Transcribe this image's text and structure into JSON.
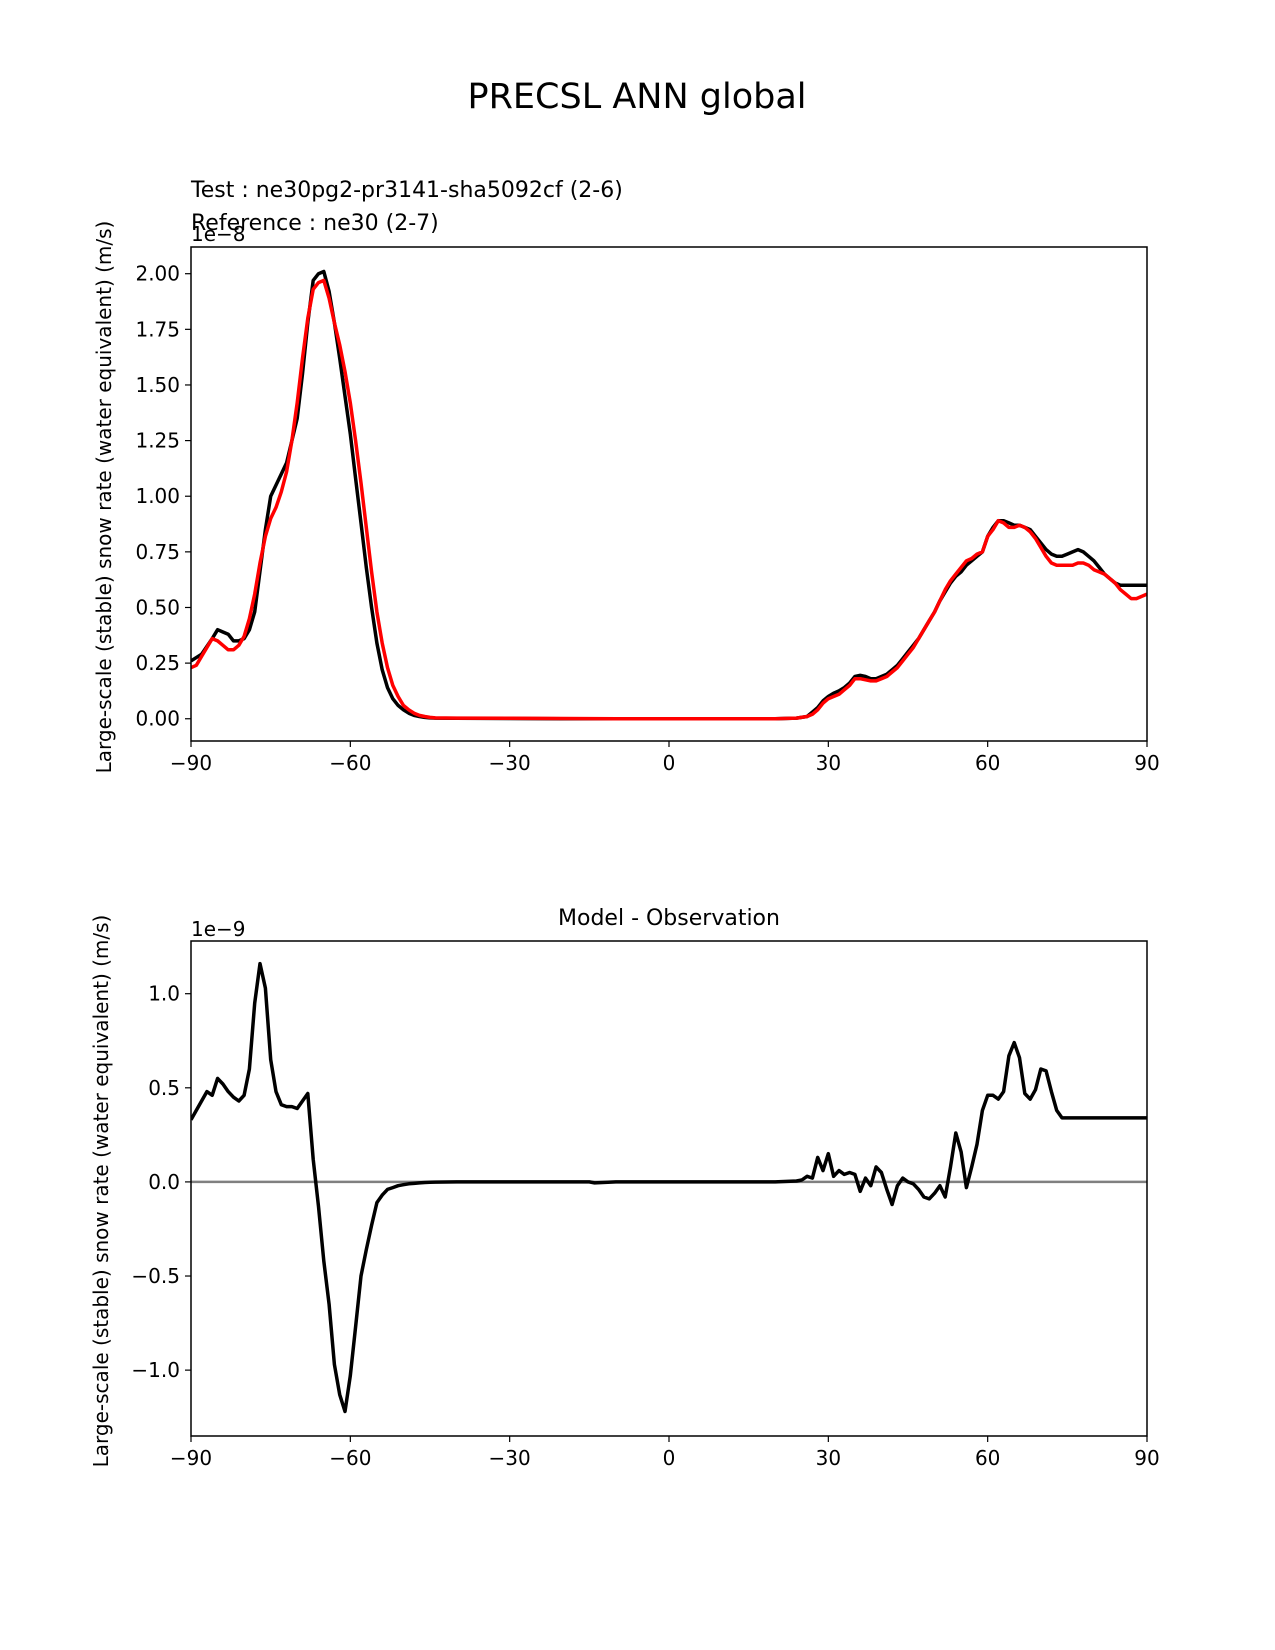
{
  "figure": {
    "suptitle": "PRECSL ANN global"
  },
  "colors": {
    "test": "#000000",
    "reference": "#ff0000",
    "zero_line": "#808080"
  },
  "chart_data": [
    {
      "type": "line",
      "test_label": "Test : ne30pg2-pr3141-sha5092cf (2-6)",
      "reference_label": "Reference : ne30 (2-7)",
      "ylabel": "Large-scale (stable) snow rate (water equivalent) (m/s)",
      "offset_text": "1e−8",
      "xlim": [
        -90,
        90
      ],
      "ylim": [
        -0.1,
        2.12
      ],
      "xticks": [
        -90,
        -60,
        -30,
        0,
        30,
        60,
        90
      ],
      "xtick_labels": [
        "−90",
        "−60",
        "−30",
        "0",
        "30",
        "60",
        "90"
      ],
      "yticks": [
        0.0,
        0.25,
        0.5,
        0.75,
        1.0,
        1.25,
        1.5,
        1.75,
        2.0
      ],
      "ytick_labels": [
        "0.00",
        "0.25",
        "0.50",
        "0.75",
        "1.00",
        "1.25",
        "1.50",
        "1.75",
        "2.00"
      ],
      "grid": false,
      "series": [
        {
          "color": "#000000",
          "x": [
            -90,
            -88,
            -86,
            -85,
            -84,
            -83,
            -82,
            -81,
            -80,
            -79,
            -78,
            -76,
            -75,
            -74,
            -73,
            -72,
            -71,
            -70,
            -69,
            -68,
            -67,
            -66,
            -65,
            -64,
            -63,
            -62,
            -61,
            -60,
            -59,
            -58,
            -57,
            -56,
            -55,
            -54,
            -53,
            -52,
            -51,
            -50,
            -49,
            -48,
            -47,
            -46,
            -45,
            -44,
            -40,
            -30,
            -20,
            -10,
            0,
            10,
            20,
            24,
            26,
            27,
            28,
            29,
            30,
            31,
            32,
            33,
            34,
            35,
            36,
            37,
            38,
            39,
            40,
            41,
            42,
            43,
            44,
            45,
            46,
            47,
            48,
            49,
            50,
            51,
            52,
            53,
            54,
            55,
            56,
            57,
            58,
            59,
            60,
            61,
            62,
            63,
            64,
            65,
            66,
            67,
            68,
            69,
            70,
            71,
            72,
            73,
            74,
            75,
            76,
            77,
            78,
            79,
            80,
            81,
            82,
            83,
            84,
            85,
            86,
            88,
            90
          ],
          "values": [
            0.26,
            0.29,
            0.36,
            0.4,
            0.39,
            0.38,
            0.35,
            0.35,
            0.36,
            0.4,
            0.48,
            0.85,
            1.0,
            1.05,
            1.1,
            1.15,
            1.25,
            1.35,
            1.55,
            1.78,
            1.97,
            2.0,
            2.01,
            1.92,
            1.78,
            1.62,
            1.45,
            1.28,
            1.08,
            0.88,
            0.68,
            0.5,
            0.34,
            0.22,
            0.14,
            0.09,
            0.06,
            0.04,
            0.025,
            0.015,
            0.01,
            0.006,
            0.004,
            0.003,
            0.002,
            0.001,
            0.0,
            0.0,
            0.0,
            0.0,
            0.0,
            0.003,
            0.01,
            0.03,
            0.05,
            0.08,
            0.1,
            0.115,
            0.125,
            0.14,
            0.16,
            0.19,
            0.195,
            0.19,
            0.18,
            0.18,
            0.19,
            0.2,
            0.22,
            0.24,
            0.27,
            0.3,
            0.33,
            0.36,
            0.4,
            0.44,
            0.48,
            0.53,
            0.57,
            0.61,
            0.64,
            0.66,
            0.69,
            0.71,
            0.73,
            0.75,
            0.82,
            0.86,
            0.89,
            0.89,
            0.88,
            0.87,
            0.87,
            0.86,
            0.85,
            0.82,
            0.79,
            0.76,
            0.74,
            0.73,
            0.73,
            0.74,
            0.75,
            0.76,
            0.75,
            0.73,
            0.71,
            0.68,
            0.65,
            0.63,
            0.61,
            0.6,
            0.6,
            0.6,
            0.6
          ]
        },
        {
          "color": "#ff0000",
          "x": [
            -90,
            -89,
            -88,
            -87,
            -86,
            -85,
            -84,
            -83,
            -82,
            -81,
            -80,
            -79,
            -78,
            -77,
            -76,
            -75,
            -74,
            -73,
            -72,
            -71,
            -70,
            -69,
            -68,
            -67,
            -66,
            -65,
            -64,
            -63,
            -62,
            -61,
            -60,
            -59,
            -58,
            -57,
            -56,
            -55,
            -54,
            -53,
            -52,
            -51,
            -50,
            -49,
            -48,
            -47,
            -46,
            -45,
            -44,
            -40,
            -30,
            -20,
            -10,
            0,
            10,
            20,
            24,
            26,
            27,
            28,
            29,
            30,
            31,
            32,
            33,
            34,
            35,
            36,
            37,
            38,
            39,
            40,
            41,
            42,
            43,
            44,
            45,
            46,
            47,
            48,
            49,
            50,
            51,
            52,
            53,
            54,
            55,
            56,
            57,
            58,
            59,
            60,
            61,
            62,
            63,
            64,
            65,
            66,
            67,
            68,
            69,
            70,
            71,
            72,
            73,
            74,
            75,
            76,
            77,
            78,
            79,
            80,
            81,
            82,
            83,
            84,
            85,
            86,
            87,
            88,
            89,
            90
          ],
          "values": [
            0.23,
            0.24,
            0.28,
            0.32,
            0.36,
            0.35,
            0.33,
            0.31,
            0.31,
            0.33,
            0.37,
            0.45,
            0.56,
            0.7,
            0.82,
            0.9,
            0.95,
            1.02,
            1.11,
            1.25,
            1.42,
            1.62,
            1.8,
            1.93,
            1.96,
            1.97,
            1.89,
            1.78,
            1.68,
            1.56,
            1.42,
            1.25,
            1.06,
            0.86,
            0.66,
            0.48,
            0.34,
            0.23,
            0.15,
            0.1,
            0.06,
            0.04,
            0.025,
            0.015,
            0.01,
            0.006,
            0.004,
            0.003,
            0.002,
            0.001,
            0.0,
            0.0,
            0.0,
            0.0,
            0.003,
            0.01,
            0.02,
            0.04,
            0.07,
            0.09,
            0.1,
            0.11,
            0.13,
            0.15,
            0.18,
            0.18,
            0.175,
            0.17,
            0.17,
            0.18,
            0.19,
            0.21,
            0.23,
            0.26,
            0.29,
            0.32,
            0.36,
            0.4,
            0.44,
            0.48,
            0.53,
            0.58,
            0.62,
            0.65,
            0.68,
            0.71,
            0.72,
            0.74,
            0.75,
            0.82,
            0.85,
            0.89,
            0.88,
            0.86,
            0.86,
            0.87,
            0.86,
            0.84,
            0.81,
            0.77,
            0.73,
            0.7,
            0.69,
            0.69,
            0.69,
            0.69,
            0.7,
            0.7,
            0.69,
            0.67,
            0.66,
            0.65,
            0.63,
            0.61,
            0.58,
            0.56,
            0.54,
            0.54,
            0.55,
            0.56
          ]
        }
      ]
    },
    {
      "type": "line",
      "title": "Model - Observation",
      "ylabel": "Large-scale (stable) snow rate (water equivalent) (m/s)",
      "offset_text": "1e−9",
      "xlim": [
        -90,
        90
      ],
      "ylim": [
        -1.35,
        1.28
      ],
      "xticks": [
        -90,
        -60,
        -30,
        0,
        30,
        60,
        90
      ],
      "xtick_labels": [
        "−90",
        "−60",
        "−30",
        "0",
        "30",
        "60",
        "90"
      ],
      "yticks": [
        -1.0,
        -0.5,
        0.0,
        0.5,
        1.0
      ],
      "ytick_labels": [
        "−1.0",
        "−0.5",
        "0.0",
        "0.5",
        "1.0"
      ],
      "grid": false,
      "zero_line": 0.0,
      "series": [
        {
          "color": "#000000",
          "x": [
            -90,
            -89,
            -87,
            -86,
            -85,
            -84,
            -83,
            -82,
            -81,
            -80,
            -79,
            -78,
            -77,
            -76,
            -75,
            -74,
            -73,
            -72,
            -71,
            -70,
            -68,
            -67,
            -66,
            -65,
            -64,
            -63,
            -62,
            -61,
            -60,
            -59,
            -58,
            -57,
            -56,
            -55,
            -54,
            -53,
            -52,
            -51,
            -50,
            -49,
            -48,
            -47,
            -46,
            -45,
            -44,
            -40,
            -30,
            -20,
            -15,
            -14,
            -10,
            0,
            10,
            20,
            24,
            25,
            26,
            27,
            28,
            29,
            30,
            31,
            32,
            33,
            34,
            35,
            36,
            37,
            38,
            39,
            40,
            41,
            42,
            43,
            44,
            45,
            46,
            47,
            48,
            49,
            50,
            51,
            52,
            53,
            54,
            55,
            56,
            57,
            58,
            59,
            60,
            61,
            62,
            63,
            64,
            65,
            66,
            67,
            68,
            69,
            70,
            71,
            72,
            73,
            74,
            75,
            76,
            77,
            78,
            79,
            80,
            81,
            82,
            83,
            84,
            85,
            86,
            87,
            88,
            89,
            90
          ],
          "values": [
            0.33,
            0.38,
            0.48,
            0.46,
            0.55,
            0.52,
            0.48,
            0.45,
            0.43,
            0.46,
            0.6,
            0.95,
            1.16,
            1.03,
            0.65,
            0.48,
            0.41,
            0.4,
            0.4,
            0.39,
            0.47,
            0.12,
            -0.13,
            -0.42,
            -0.65,
            -0.97,
            -1.13,
            -1.22,
            -1.03,
            -0.77,
            -0.5,
            -0.36,
            -0.23,
            -0.11,
            -0.07,
            -0.04,
            -0.03,
            -0.02,
            -0.015,
            -0.01,
            -0.008,
            -0.005,
            -0.003,
            -0.002,
            -0.001,
            0.0,
            0.0,
            0.0,
            0.0,
            -0.005,
            0.0,
            0.0,
            0.0,
            0.0,
            0.005,
            0.01,
            0.03,
            0.02,
            0.13,
            0.06,
            0.15,
            0.03,
            0.06,
            0.04,
            0.05,
            0.04,
            -0.05,
            0.02,
            -0.02,
            0.08,
            0.05,
            -0.04,
            -0.12,
            -0.02,
            0.02,
            0.0,
            -0.01,
            -0.04,
            -0.08,
            -0.09,
            -0.06,
            -0.02,
            -0.08,
            0.08,
            0.26,
            0.16,
            -0.03,
            0.08,
            0.2,
            0.38,
            0.46,
            0.46,
            0.44,
            0.48,
            0.67,
            0.74,
            0.66,
            0.47,
            0.44,
            0.49,
            0.6,
            0.59,
            0.48,
            0.38,
            0.34,
            0.34,
            0.34,
            0.34,
            0.34,
            0.34,
            0.34,
            0.34,
            0.34,
            0.34,
            0.34,
            0.34,
            0.34,
            0.34,
            0.34,
            0.34,
            0.34
          ]
        }
      ]
    }
  ]
}
